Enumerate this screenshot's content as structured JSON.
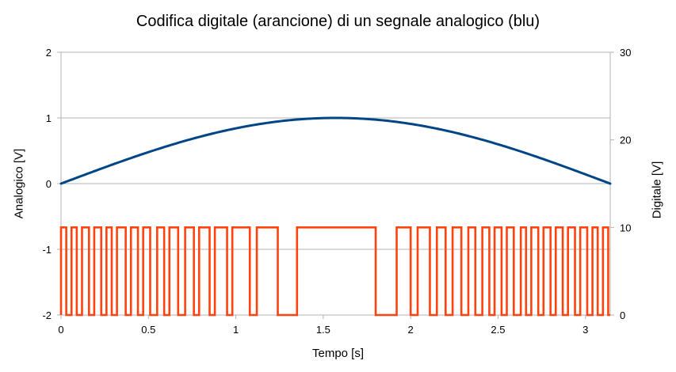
{
  "chart_data": {
    "type": "line",
    "title": "Codifica digitale (arancione) di un segnale analogico (blu)",
    "xlabel": "Tempo [s]",
    "ylabel": "Analogico [V]",
    "y2label": "Digitale [V]",
    "xlim": [
      0,
      3.1416
    ],
    "ylim": [
      -2,
      2
    ],
    "y2lim": [
      0,
      30
    ],
    "x_ticks": [
      "0",
      "0.5",
      "1",
      "1.5",
      "2",
      "2.5",
      "3"
    ],
    "x_tick_values": [
      0,
      0.5,
      1,
      1.5,
      2,
      2.5,
      3
    ],
    "y_ticks": [
      "-2",
      "-1",
      "0",
      "1",
      "2"
    ],
    "y_tick_values": [
      -2,
      -1,
      0,
      1,
      2
    ],
    "y2_ticks": [
      "0",
      "10",
      "20",
      "30"
    ],
    "y2_tick_values": [
      0,
      10,
      20,
      30
    ],
    "grid": true,
    "series": [
      {
        "axis": "left",
        "color": "#004586",
        "function": "sin",
        "x": [
          0,
          0.1571,
          0.3142,
          0.4712,
          0.6283,
          0.7854,
          0.9425,
          1.0996,
          1.2566,
          1.4137,
          1.5708,
          1.7279,
          1.885,
          2.042,
          2.1991,
          2.3562,
          2.5133,
          2.6704,
          2.8274,
          2.9845,
          3.1416
        ],
        "values": [
          0,
          0.156,
          0.309,
          0.454,
          0.588,
          0.707,
          0.809,
          0.891,
          0.951,
          0.988,
          1,
          0.988,
          0.951,
          0.891,
          0.809,
          0.707,
          0.588,
          0.454,
          0.309,
          0.156,
          0
        ]
      },
      {
        "axis": "right",
        "color": "#ff420e",
        "type": "step",
        "high": 10,
        "low": 0,
        "x_start": 0,
        "x_end": 3.1416,
        "start_level": 10,
        "toggle_x": [
          0.03,
          0.06,
          0.09,
          0.12,
          0.16,
          0.19,
          0.23,
          0.26,
          0.29,
          0.32,
          0.37,
          0.4,
          0.44,
          0.47,
          0.51,
          0.55,
          0.59,
          0.62,
          0.67,
          0.71,
          0.76,
          0.79,
          0.85,
          0.88,
          0.95,
          0.98,
          1.08,
          1.12,
          1.24,
          1.35,
          1.8,
          1.92,
          2.0,
          2.04,
          2.11,
          2.15,
          2.2,
          2.24,
          2.29,
          2.33,
          2.37,
          2.41,
          2.45,
          2.48,
          2.52,
          2.55,
          2.59,
          2.63,
          2.66,
          2.69,
          2.73,
          2.76,
          2.8,
          2.83,
          2.87,
          2.9,
          2.94,
          2.97,
          3.01,
          3.04,
          3.07,
          3.1,
          3.13
        ]
      }
    ]
  }
}
